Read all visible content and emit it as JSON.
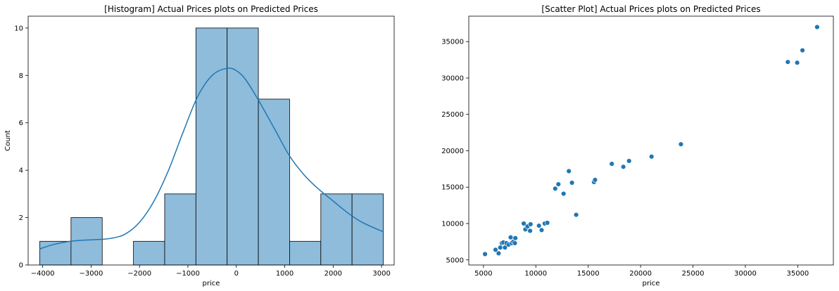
{
  "chart_data": [
    {
      "type": "bar",
      "title": "[Histogram] Actual Prices plots on Predicted Prices",
      "xlabel": "price",
      "ylabel": "Count",
      "xlim": [
        -4300,
        3260
      ],
      "ylim": [
        0,
        10.5
      ],
      "xticks": [
        -4000,
        -3000,
        -2000,
        -1000,
        0,
        1000,
        2000,
        3000
      ],
      "xtick_labels": [
        "−4000",
        "−3000",
        "−2000",
        "−1000",
        "0",
        "1000",
        "2000",
        "3000"
      ],
      "yticks": [
        0,
        2,
        4,
        6,
        8,
        10
      ],
      "ytick_labels": [
        "0",
        "2",
        "4",
        "6",
        "8",
        "10"
      ],
      "bins": [
        {
          "x0": -4060,
          "x1": -3415,
          "count": 1
        },
        {
          "x0": -3415,
          "x1": -2770,
          "count": 2
        },
        {
          "x0": -2770,
          "x1": -2125,
          "count": 0
        },
        {
          "x0": -2125,
          "x1": -1480,
          "count": 1
        },
        {
          "x0": -1480,
          "x1": -835,
          "count": 3
        },
        {
          "x0": -835,
          "x1": -190,
          "count": 10
        },
        {
          "x0": -190,
          "x1": 455,
          "count": 10
        },
        {
          "x0": 455,
          "x1": 1100,
          "count": 7
        },
        {
          "x0": 1100,
          "x1": 1745,
          "count": 1
        },
        {
          "x0": 1745,
          "x1": 2390,
          "count": 3
        },
        {
          "x0": 2390,
          "x1": 3035,
          "count": 3
        }
      ],
      "kde": {
        "x": [
          -4060,
          -3800,
          -3500,
          -3200,
          -2900,
          -2600,
          -2300,
          -2000,
          -1700,
          -1400,
          -1100,
          -800,
          -500,
          -200,
          0,
          200,
          500,
          800,
          1100,
          1400,
          1700,
          2000,
          2300,
          2600,
          3035
        ],
        "y": [
          0.68,
          0.85,
          0.98,
          1.04,
          1.07,
          1.12,
          1.3,
          1.8,
          2.7,
          4.0,
          5.6,
          7.1,
          8.0,
          8.3,
          8.2,
          7.8,
          6.8,
          5.7,
          4.6,
          3.8,
          3.2,
          2.7,
          2.2,
          1.8,
          1.4
        ]
      },
      "colors": {
        "bar_fill": "#8fbcdb",
        "bar_edge": "#000000",
        "kde": "#1f77b4"
      }
    },
    {
      "type": "scatter",
      "title": "[Scatter Plot] Actual Prices plots on Predicted Prices",
      "xlabel": "price",
      "ylabel": "",
      "xlim": [
        3600,
        38400
      ],
      "ylim": [
        4300,
        38500
      ],
      "xticks": [
        5000,
        10000,
        15000,
        20000,
        25000,
        30000,
        35000
      ],
      "xtick_labels": [
        "5000",
        "10000",
        "15000",
        "20000",
        "25000",
        "30000",
        "35000"
      ],
      "yticks": [
        5000,
        10000,
        15000,
        20000,
        25000,
        30000,
        35000
      ],
      "ytick_labels": [
        "5000",
        "10000",
        "15000",
        "20000",
        "25000",
        "30000",
        "35000"
      ],
      "points": {
        "x": [
          5150,
          6150,
          6450,
          6600,
          6750,
          6900,
          7050,
          7200,
          7400,
          7600,
          7700,
          7850,
          8000,
          8050,
          8850,
          9000,
          9200,
          9450,
          9500,
          10300,
          10550,
          10850,
          11100,
          11850,
          12150,
          12650,
          13150,
          13450,
          13850,
          15550,
          15650,
          17250,
          18350,
          18900,
          21050,
          23850,
          34050,
          34950,
          35450,
          36850
        ],
        "y": [
          5800,
          6400,
          5900,
          6700,
          7300,
          7400,
          6700,
          7300,
          7100,
          8100,
          7300,
          7500,
          7300,
          8000,
          10000,
          9200,
          9600,
          9000,
          9900,
          9700,
          9100,
          10000,
          10100,
          14800,
          15400,
          14100,
          17200,
          15600,
          11200,
          15700,
          16000,
          18200,
          17800,
          18600,
          19200,
          20900,
          32200,
          32100,
          33800,
          37000
        ]
      },
      "colors": {
        "point": "#1f77b4",
        "point_edge": "#ffffff"
      }
    }
  ]
}
